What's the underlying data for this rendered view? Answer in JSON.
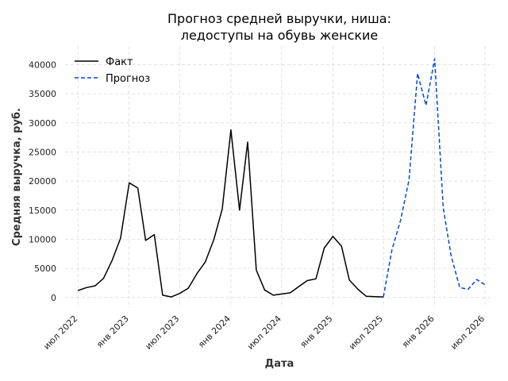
{
  "chart_data": {
    "type": "line",
    "title_lines": [
      "Прогноз средней выручки, ниша:",
      "ледоступы на обувь женские"
    ],
    "xlabel": "Дата",
    "ylabel": "Средняя выручка, руб.",
    "ylim": [
      -1800,
      43200
    ],
    "xlim": [
      "2022-05-16",
      "2026-08-01"
    ],
    "yticks": [
      0,
      5000,
      10000,
      15000,
      20000,
      25000,
      30000,
      35000,
      40000
    ],
    "xticks": [
      {
        "date": "2022-07-01",
        "label": "июл 2022"
      },
      {
        "date": "2023-01-01",
        "label": "янв 2023"
      },
      {
        "date": "2023-07-01",
        "label": "июл 2023"
      },
      {
        "date": "2024-01-01",
        "label": "янв 2024"
      },
      {
        "date": "2024-07-01",
        "label": "июл 2024"
      },
      {
        "date": "2025-01-01",
        "label": "янв 2025"
      },
      {
        "date": "2025-07-01",
        "label": "июл 2025"
      },
      {
        "date": "2026-01-01",
        "label": "янв 2026"
      },
      {
        "date": "2026-07-01",
        "label": "июл 2026"
      }
    ],
    "grid": true,
    "legend_position": "top-left",
    "series": [
      {
        "name": "Факт",
        "color": "#000000",
        "style": "solid",
        "points": [
          [
            "2022-07-01",
            1200
          ],
          [
            "2022-08-01",
            1700
          ],
          [
            "2022-09-01",
            2000
          ],
          [
            "2022-10-01",
            3300
          ],
          [
            "2022-11-01",
            6400
          ],
          [
            "2022-12-01",
            10200
          ],
          [
            "2023-01-01",
            19700
          ],
          [
            "2023-02-01",
            18800
          ],
          [
            "2023-03-01",
            9800
          ],
          [
            "2023-04-01",
            10800
          ],
          [
            "2023-05-01",
            400
          ],
          [
            "2023-06-01",
            100
          ],
          [
            "2023-07-01",
            700
          ],
          [
            "2023-08-01",
            1600
          ],
          [
            "2023-09-01",
            4100
          ],
          [
            "2023-10-01",
            6100
          ],
          [
            "2023-11-01",
            10000
          ],
          [
            "2023-12-01",
            15200
          ],
          [
            "2024-01-01",
            28800
          ],
          [
            "2024-02-01",
            15000
          ],
          [
            "2024-03-01",
            26700
          ],
          [
            "2024-04-01",
            4700
          ],
          [
            "2024-05-01",
            1300
          ],
          [
            "2024-06-01",
            400
          ],
          [
            "2024-07-01",
            600
          ],
          [
            "2024-08-01",
            800
          ],
          [
            "2024-09-01",
            1900
          ],
          [
            "2024-10-01",
            2900
          ],
          [
            "2024-11-01",
            3200
          ],
          [
            "2024-12-01",
            8500
          ],
          [
            "2025-01-01",
            10500
          ],
          [
            "2025-02-01",
            8800
          ],
          [
            "2025-03-01",
            3000
          ],
          [
            "2025-04-01",
            1400
          ],
          [
            "2025-05-01",
            200
          ],
          [
            "2025-06-01",
            150
          ],
          [
            "2025-07-01",
            100
          ]
        ]
      },
      {
        "name": "Прогноз",
        "color": "#0047d9",
        "style": "dashed",
        "points": [
          [
            "2025-07-01",
            100
          ],
          [
            "2025-08-01",
            8200
          ],
          [
            "2025-09-01",
            13300
          ],
          [
            "2025-10-01",
            20200
          ],
          [
            "2025-11-01",
            38500
          ],
          [
            "2025-12-01",
            33000
          ],
          [
            "2026-01-01",
            41000
          ],
          [
            "2026-02-01",
            15400
          ],
          [
            "2026-03-01",
            7200
          ],
          [
            "2026-04-01",
            1700
          ],
          [
            "2026-05-01",
            1400
          ],
          [
            "2026-06-01",
            3100
          ],
          [
            "2026-07-01",
            2200
          ]
        ]
      }
    ]
  }
}
